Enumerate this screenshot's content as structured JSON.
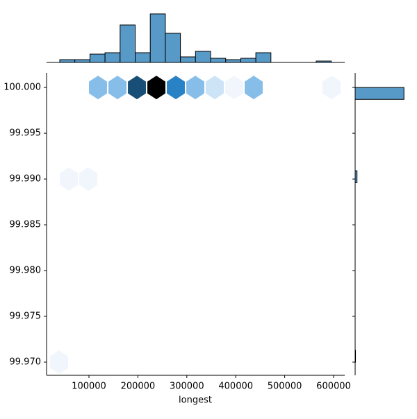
{
  "chart_data": {
    "type": "hexbin-joint",
    "x_label": "longest",
    "xlim": [
      13352,
      622727
    ],
    "xticks": [
      100000,
      200000,
      300000,
      400000,
      500000,
      600000
    ],
    "ylim": [
      99.96856,
      100.0016
    ],
    "yticks": [
      {
        "value": 99.97,
        "label": "99.970"
      },
      {
        "value": 99.975,
        "label": "99.975"
      },
      {
        "value": 99.98,
        "label": "99.980"
      },
      {
        "value": 99.985,
        "label": "99.985"
      },
      {
        "value": 99.99,
        "label": "99.990"
      },
      {
        "value": 99.995,
        "label": "99.995"
      },
      {
        "value": 100.0,
        "label": "100.000"
      }
    ],
    "hexbin": {
      "x": [
        118466,
        158239,
        198011,
        237784,
        277557,
        317330,
        357102,
        396875,
        436648,
        595739,
        58807,
        98580,
        38920
      ],
      "y": [
        100.0,
        100.0,
        100.0,
        100.0,
        100.0,
        100.0,
        100.0,
        100.0,
        100.0,
        100.0,
        99.99,
        99.99,
        99.97
      ],
      "counts": [
        4,
        4,
        9,
        12,
        7,
        4,
        2,
        1,
        4,
        1,
        1,
        1,
        1
      ],
      "colors": [
        "#f0f6fc",
        "#2d8fd9",
        "#000000"
      ]
    },
    "top_hist": {
      "bins": [
        40341,
        71165,
        101989,
        132813,
        163637,
        194461,
        225285,
        256109,
        286933,
        317757,
        348581,
        379405,
        410229,
        441053,
        471877,
        502701,
        533525,
        564349,
        595173
      ],
      "counts": [
        2,
        2,
        6,
        7,
        27,
        7,
        35,
        21,
        4,
        8,
        3,
        2,
        3,
        7,
        0,
        0,
        0,
        1
      ],
      "ylim": [
        0,
        37.5
      ],
      "color": "#5799c7"
    },
    "right_hist": {
      "bins": [
        99.97,
        99.9713,
        99.9726,
        99.9739,
        99.9752,
        99.9765,
        99.9778,
        99.9791,
        99.9804,
        99.9817,
        99.983,
        99.9843,
        99.9857,
        99.987,
        99.9883,
        99.9896,
        99.9909,
        99.9922,
        99.9935,
        99.9948,
        99.9961,
        99.9974,
        99.9987,
        100.0
      ],
      "counts": [
        1,
        0,
        0,
        0,
        0,
        0,
        0,
        0,
        0,
        0,
        0,
        0,
        0,
        0,
        0,
        5,
        0,
        0,
        0,
        0,
        0,
        0,
        131
      ],
      "xlim": [
        0,
        166
      ],
      "color": "#5799c7"
    }
  }
}
